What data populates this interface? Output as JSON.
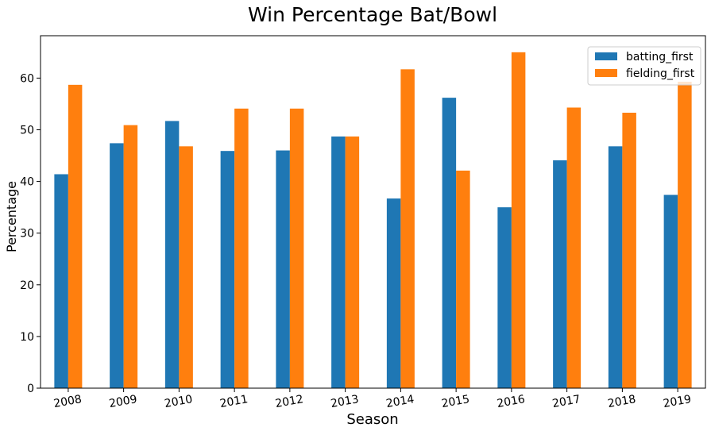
{
  "chart_data": {
    "type": "bar",
    "title": "Win Percentage Bat/Bowl",
    "xlabel": "Season",
    "ylabel": "Percentage",
    "categories": [
      "2008",
      "2009",
      "2010",
      "2011",
      "2012",
      "2013",
      "2014",
      "2015",
      "2016",
      "2017",
      "2018",
      "2019"
    ],
    "series": [
      {
        "name": "batting_first",
        "color": "#1f77b4",
        "values": [
          41.4,
          47.4,
          51.7,
          45.9,
          46.0,
          48.7,
          36.7,
          56.2,
          35.0,
          44.1,
          46.8,
          37.4
        ]
      },
      {
        "name": "fielding_first",
        "color": "#ff7f0e",
        "values": [
          58.7,
          50.9,
          46.8,
          54.1,
          54.1,
          48.7,
          61.7,
          42.1,
          65.0,
          54.3,
          53.3,
          59.3
        ]
      }
    ],
    "ylim": [
      0,
      68.2
    ],
    "yticks": [
      0,
      10,
      20,
      30,
      40,
      50,
      60
    ],
    "grid": false,
    "legend_position": "top-right"
  }
}
